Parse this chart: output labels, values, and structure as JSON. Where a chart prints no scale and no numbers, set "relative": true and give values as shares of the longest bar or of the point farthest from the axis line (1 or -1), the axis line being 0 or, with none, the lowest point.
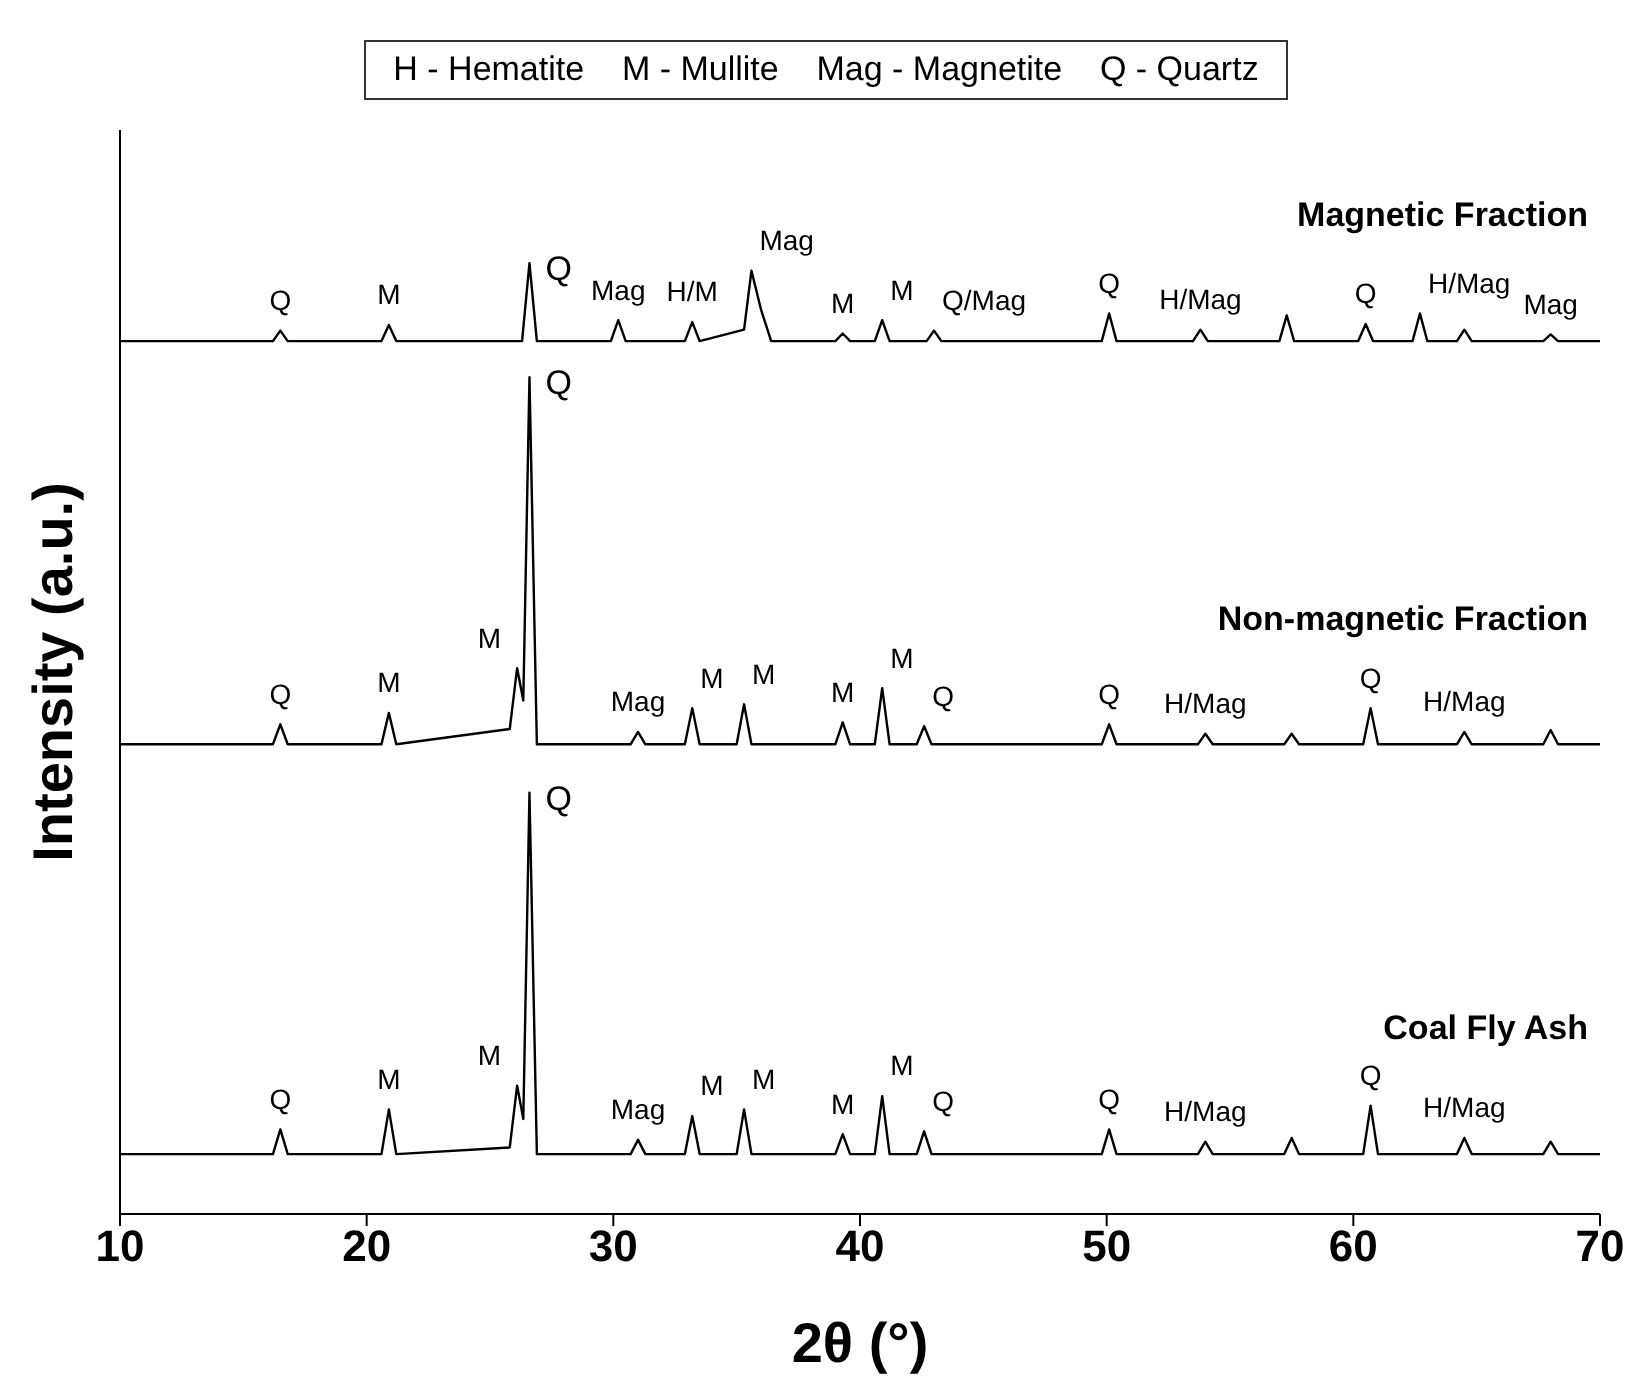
{
  "chart_data": {
    "type": "line",
    "relative": true,
    "xlabel": "2θ (°)",
    "ylabel": "Intensity (a.u.)",
    "xlim": [
      10,
      70
    ],
    "xticks": [
      10,
      20,
      30,
      40,
      50,
      60,
      70
    ],
    "marker": "none",
    "line_style": "solid",
    "series": [
      {
        "name": "Magnetic Fraction",
        "color": "#000000",
        "x": [
          10,
          16.2,
          16.5,
          16.8,
          20.6,
          20.9,
          21.2,
          26.3,
          26.6,
          26.9,
          29.9,
          30.2,
          30.5,
          32.9,
          33.2,
          33.5,
          35.3,
          35.6,
          36,
          36.4,
          39,
          39.3,
          39.6,
          40.6,
          40.9,
          41.2,
          42.7,
          43,
          43.3,
          49.8,
          50.1,
          50.4,
          53.5,
          53.8,
          54.1,
          57,
          57.3,
          57.6,
          60.2,
          60.5,
          60.8,
          62.4,
          62.7,
          63,
          64.2,
          64.5,
          64.8,
          67.7,
          68,
          68.3,
          70
        ],
        "values": [
          0.918,
          0.918,
          0.929,
          0.918,
          0.918,
          0.935,
          0.918,
          0.918,
          1.0,
          0.918,
          0.918,
          0.94,
          0.918,
          0.918,
          0.938,
          0.918,
          0.93,
          0.992,
          0.95,
          0.918,
          0.918,
          0.926,
          0.918,
          0.918,
          0.94,
          0.918,
          0.918,
          0.929,
          0.918,
          0.918,
          0.947,
          0.918,
          0.918,
          0.93,
          0.918,
          0.918,
          0.945,
          0.918,
          0.918,
          0.936,
          0.918,
          0.918,
          0.947,
          0.918,
          0.918,
          0.93,
          0.918,
          0.918,
          0.925,
          0.918,
          0.918
        ]
      },
      {
        "name": "Non-magnetic Fraction",
        "color": "#000000",
        "x": [
          10,
          16.2,
          16.5,
          16.8,
          20.6,
          20.9,
          21.2,
          25.8,
          26.1,
          26.35,
          26.6,
          26.9,
          30.7,
          31,
          31.3,
          32.9,
          33.2,
          33.5,
          35,
          35.3,
          35.6,
          39,
          39.3,
          39.6,
          40.6,
          40.9,
          41.2,
          42.3,
          42.6,
          42.9,
          49.8,
          50.1,
          50.4,
          53.7,
          54,
          54.3,
          57.2,
          57.5,
          57.8,
          60.4,
          60.7,
          61,
          64.2,
          64.5,
          64.8,
          67.7,
          68,
          68.3,
          70
        ],
        "values": [
          0.494,
          0.494,
          0.515,
          0.494,
          0.494,
          0.527,
          0.494,
          0.51,
          0.574,
          0.54,
          0.88,
          0.494,
          0.494,
          0.507,
          0.494,
          0.494,
          0.532,
          0.494,
          0.494,
          0.536,
          0.494,
          0.494,
          0.517,
          0.494,
          0.494,
          0.553,
          0.494,
          0.494,
          0.513,
          0.494,
          0.494,
          0.515,
          0.494,
          0.494,
          0.505,
          0.494,
          0.494,
          0.505,
          0.494,
          0.494,
          0.532,
          0.494,
          0.494,
          0.507,
          0.494,
          0.494,
          0.509,
          0.494,
          0.494
        ]
      },
      {
        "name": "Coal Fly Ash",
        "color": "#000000",
        "x": [
          10,
          16.2,
          16.5,
          16.8,
          20.6,
          20.9,
          21.2,
          25.8,
          26.1,
          26.35,
          26.6,
          26.9,
          30.7,
          31,
          31.3,
          32.9,
          33.2,
          33.5,
          35,
          35.3,
          35.6,
          39,
          39.3,
          39.6,
          40.6,
          40.9,
          41.2,
          42.3,
          42.6,
          42.9,
          49.8,
          50.1,
          50.4,
          53.7,
          54,
          54.3,
          57.2,
          57.5,
          57.8,
          60.4,
          60.7,
          61,
          64.2,
          64.5,
          64.8,
          67.7,
          68,
          68.3,
          70
        ],
        "values": [
          0.063,
          0.063,
          0.089,
          0.063,
          0.063,
          0.11,
          0.063,
          0.07,
          0.135,
          0.1,
          0.443,
          0.063,
          0.063,
          0.078,
          0.063,
          0.063,
          0.103,
          0.063,
          0.063,
          0.11,
          0.063,
          0.063,
          0.084,
          0.063,
          0.063,
          0.124,
          0.063,
          0.063,
          0.087,
          0.063,
          0.063,
          0.089,
          0.063,
          0.063,
          0.076,
          0.063,
          0.063,
          0.08,
          0.063,
          0.063,
          0.114,
          0.063,
          0.063,
          0.08,
          0.063,
          0.063,
          0.076,
          0.063,
          0.063
        ]
      }
    ],
    "annotations": [
      "H - Hematite    M - Mullite    Mag - Magnetite    Q - Quartz",
      {
        "text": "Q",
        "x": 16.5,
        "y": 0.929
      },
      {
        "text": "M",
        "x": 20.9,
        "y": 0.935
      },
      {
        "text": "Q",
        "x": 26.6,
        "y": 1.0
      },
      {
        "text": "Mag",
        "x": 30.2,
        "y": 0.94
      },
      {
        "text": "H/M",
        "x": 33.2,
        "y": 0.938
      },
      {
        "text": "Mag",
        "x": 35.6,
        "y": 0.992
      },
      {
        "text": "M",
        "x": 39.3,
        "y": 0.926
      },
      {
        "text": "M",
        "x": 40.9,
        "y": 0.94
      },
      {
        "text": "Q/Mag",
        "x": 43,
        "y": 0.929
      },
      {
        "text": "Q",
        "x": 50.1,
        "y": 0.947
      },
      {
        "text": "H/Mag",
        "x": 53.8,
        "y": 0.93
      },
      {
        "text": "Q",
        "x": 60.5,
        "y": 0.936
      },
      {
        "text": "H/Mag",
        "x": 62.7,
        "y": 0.947
      },
      {
        "text": "Mag",
        "x": 68,
        "y": 0.925
      },
      {
        "text": "Q",
        "x": 16.5,
        "y": 0.515
      },
      {
        "text": "M",
        "x": 20.9,
        "y": 0.527
      },
      {
        "text": "M",
        "x": 26.1,
        "y": 0.574
      },
      {
        "text": "Q",
        "x": 26.6,
        "y": 0.88
      },
      {
        "text": "Mag",
        "x": 31,
        "y": 0.507
      },
      {
        "text": "M",
        "x": 33.2,
        "y": 0.532
      },
      {
        "text": "M",
        "x": 35.3,
        "y": 0.536
      },
      {
        "text": "M",
        "x": 39.3,
        "y": 0.517
      },
      {
        "text": "M",
        "x": 40.9,
        "y": 0.553
      },
      {
        "text": "Q",
        "x": 42.6,
        "y": 0.513
      },
      {
        "text": "Q",
        "x": 50.1,
        "y": 0.515
      },
      {
        "text": "H/Mag",
        "x": 54,
        "y": 0.505
      },
      {
        "text": "Q",
        "x": 60.7,
        "y": 0.532
      },
      {
        "text": "H/Mag",
        "x": 64.5,
        "y": 0.507
      },
      {
        "text": "Q",
        "x": 16.5,
        "y": 0.089
      },
      {
        "text": "M",
        "x": 20.9,
        "y": 0.11
      },
      {
        "text": "M",
        "x": 26.1,
        "y": 0.135
      },
      {
        "text": "Q",
        "x": 26.6,
        "y": 0.443
      },
      {
        "text": "Mag",
        "x": 31,
        "y": 0.078
      },
      {
        "text": "M",
        "x": 33.2,
        "y": 0.103
      },
      {
        "text": "M",
        "x": 35.3,
        "y": 0.11
      },
      {
        "text": "M",
        "x": 39.3,
        "y": 0.084
      },
      {
        "text": "M",
        "x": 40.9,
        "y": 0.124
      },
      {
        "text": "Q",
        "x": 42.6,
        "y": 0.087
      },
      {
        "text": "Q",
        "x": 50.1,
        "y": 0.089
      },
      {
        "text": "H/Mag",
        "x": 54,
        "y": 0.076
      },
      {
        "text": "Q",
        "x": 60.7,
        "y": 0.114
      },
      {
        "text": "H/Mag",
        "x": 64.5,
        "y": 0.08
      }
    ]
  }
}
